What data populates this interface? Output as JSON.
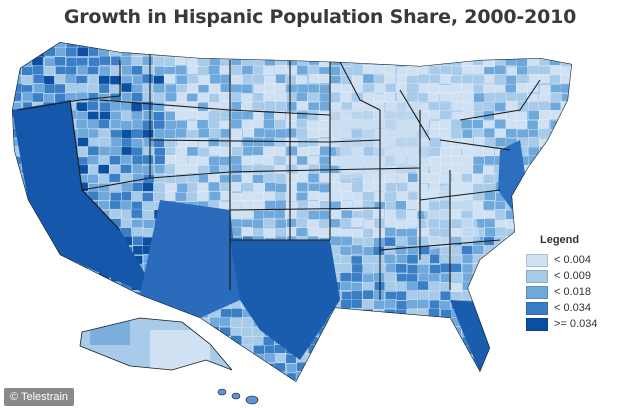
{
  "map": {
    "title": "Growth in Hispanic Population Share, 2000-2010",
    "legend": {
      "title": "Legend",
      "items": [
        {
          "label": "< 0.004",
          "color": "#cfe1f3"
        },
        {
          "label": "< 0.009",
          "color": "#a8cbea"
        },
        {
          "label": "< 0.018",
          "color": "#6fa9dc"
        },
        {
          "label": "< 0.034",
          "color": "#3a7fc5"
        },
        {
          "label": ">= 0.034",
          "color": "#0b4fa3"
        }
      ]
    },
    "credit": "© Telestrain"
  }
}
